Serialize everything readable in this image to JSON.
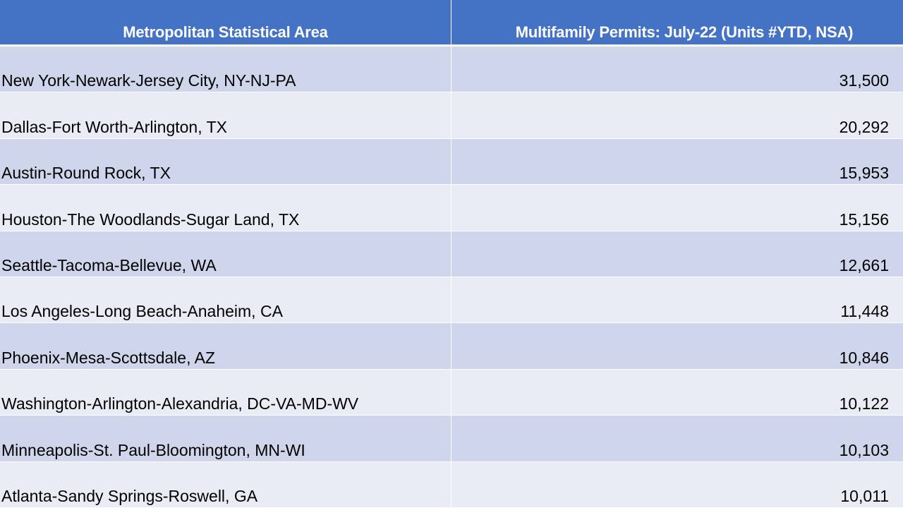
{
  "table": {
    "headers": {
      "area": "Metropolitan Statistical Area",
      "permits": "Multifamily Permits: July-22 (Units #YTD, NSA)"
    },
    "rows": [
      {
        "area": "New York-Newark-Jersey City, NY-NJ-PA",
        "permits": "31,500"
      },
      {
        "area": "Dallas-Fort Worth-Arlington, TX",
        "permits": "20,292"
      },
      {
        "area": "Austin-Round Rock, TX",
        "permits": "15,953"
      },
      {
        "area": "Houston-The Woodlands-Sugar Land, TX",
        "permits": "15,156"
      },
      {
        "area": "Seattle-Tacoma-Bellevue, WA",
        "permits": "12,661"
      },
      {
        "area": "Los Angeles-Long Beach-Anaheim, CA",
        "permits": "11,448"
      },
      {
        "area": "Phoenix-Mesa-Scottsdale, AZ",
        "permits": "10,846"
      },
      {
        "area": "Washington-Arlington-Alexandria, DC-VA-MD-WV",
        "permits": "10,122"
      },
      {
        "area": "Minneapolis-St. Paul-Bloomington, MN-WI",
        "permits": "10,103"
      },
      {
        "area": "Atlanta-Sandy Springs-Roswell, GA",
        "permits": "10,011"
      }
    ]
  },
  "colors": {
    "header_bg": "#4472c4",
    "header_text": "#ffffff",
    "row_band_dark": "#cfd5ea",
    "row_band_light": "#e9ebf5"
  }
}
